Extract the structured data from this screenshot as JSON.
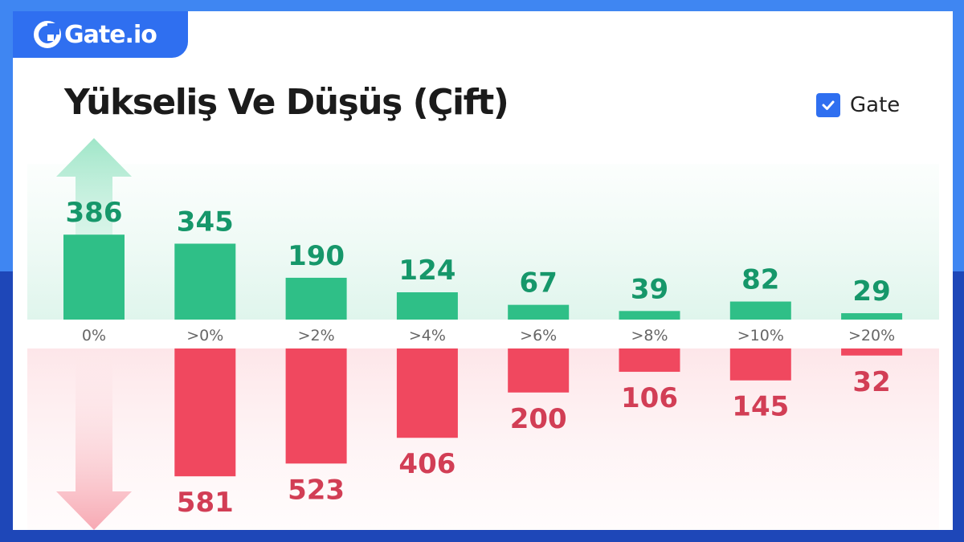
{
  "brand": {
    "name": "Gate.io"
  },
  "title": "Yükseliş Ve Düşüş (Çift)",
  "legend": {
    "label": "Gate",
    "checked": true
  },
  "colors": {
    "up": "#2fbf87",
    "down": "#f0485f",
    "up_text": "#16976a",
    "down_text": "#d23e55",
    "brand_blue": "#2f6ff0"
  },
  "chart_data": {
    "type": "bar",
    "categories": [
      "0%",
      ">0%",
      ">2%",
      ">4%",
      ">6%",
      ">8%",
      ">10%",
      ">20%"
    ],
    "series": [
      {
        "values": [
          386,
          345,
          190,
          124,
          67,
          39,
          82,
          29
        ]
      },
      {
        "values": [
          null,
          581,
          523,
          406,
          200,
          106,
          145,
          32
        ]
      }
    ],
    "title": "Yükseliş Ve Düşüş (Çift)",
    "xlabel": "",
    "ylabel": "",
    "grid": false,
    "legend_position": "top-right"
  }
}
